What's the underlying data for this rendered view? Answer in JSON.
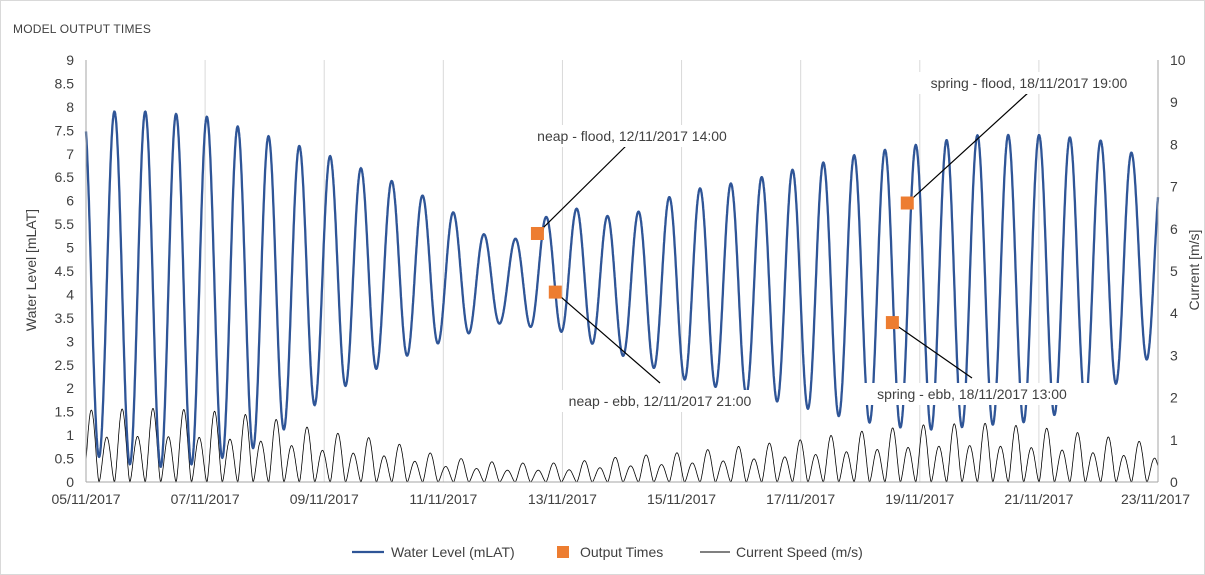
{
  "chart_data": {
    "type": "line",
    "title": "MODEL OUTPUT TIMES",
    "x_axis": {
      "ticks": [
        "05/11/2017",
        "07/11/2017",
        "09/11/2017",
        "11/11/2017",
        "13/11/2017",
        "15/11/2017",
        "17/11/2017",
        "19/11/2017",
        "21/11/2017",
        "23/11/2017"
      ]
    },
    "y_left": {
      "label": "Water Level [mLAT]",
      "range": [
        0,
        9
      ],
      "ticks": [
        "0",
        "0.5",
        "1",
        "1.5",
        "2",
        "2.5",
        "3",
        "3.5",
        "4",
        "4.5",
        "5",
        "5.5",
        "6",
        "6.5",
        "7",
        "7.5",
        "8",
        "8.5",
        "9"
      ]
    },
    "y_right": {
      "label": "Current [m/s]",
      "range": [
        0,
        10
      ],
      "ticks": [
        "0",
        "1",
        "2",
        "3",
        "4",
        "5",
        "6",
        "7",
        "8",
        "9",
        "10"
      ]
    },
    "grid": "vertical",
    "legend": {
      "position": "bottom",
      "items": [
        "Water Level (mLAT)",
        "Output Times",
        "Current Speed (m/s)"
      ]
    },
    "series": [
      {
        "name": "Water Level (mLAT)",
        "axis": "left",
        "color": "#2f5597",
        "x": [
          "05/11/2017",
          "06/11/2017",
          "07/11/2017",
          "08/11/2017",
          "09/11/2017",
          "10/11/2017",
          "11/11/2017",
          "12/11/2017",
          "13/11/2017",
          "14/11/2017",
          "15/11/2017",
          "16/11/2017",
          "17/11/2017",
          "18/11/2017",
          "19/11/2017",
          "20/11/2017",
          "21/11/2017",
          "22/11/2017",
          "23/11/2017"
        ],
        "high_water": [
          7.9,
          7.9,
          7.8,
          7.4,
          7.0,
          6.5,
          5.9,
          5.0,
          5.9,
          5.6,
          6.2,
          6.4,
          6.7,
          7.0,
          7.2,
          7.4,
          7.4,
          7.3,
          6.8
        ],
        "low_water": [
          0.6,
          0.3,
          0.4,
          0.8,
          1.8,
          2.5,
          3.0,
          3.4,
          3.2,
          2.7,
          2.2,
          1.9,
          1.6,
          1.3,
          1.1,
          1.2,
          1.3,
          1.8,
          2.8
        ]
      },
      {
        "name": "Current Speed (m/s)",
        "axis": "right",
        "color": "#000000",
        "x": [
          "05/11/2017",
          "06/11/2017",
          "07/11/2017",
          "08/11/2017",
          "09/11/2017",
          "10/11/2017",
          "11/11/2017",
          "12/11/2017",
          "13/11/2017",
          "14/11/2017",
          "15/11/2017",
          "16/11/2017",
          "17/11/2017",
          "18/11/2017",
          "19/11/2017",
          "20/11/2017",
          "21/11/2017",
          "22/11/2017",
          "23/11/2017"
        ],
        "peak": [
          1.7,
          1.75,
          1.7,
          1.55,
          1.2,
          1.0,
          0.6,
          0.45,
          0.45,
          0.6,
          0.7,
          0.85,
          1.0,
          1.2,
          1.35,
          1.4,
          1.3,
          1.1,
          0.9
        ]
      },
      {
        "name": "Output Times",
        "axis": "left",
        "color": "#ed7d31",
        "points": [
          {
            "label": "neap - flood, 12/11/2017 14:00",
            "y": 5.3
          },
          {
            "label": "neap - ebb, 12/11/2017 21:00",
            "y": 4.05
          },
          {
            "label": "spring - ebb, 18/11/2017 13:00",
            "y": 3.4
          },
          {
            "label": "spring - flood, 18/11/2017 19:00",
            "y": 5.95
          }
        ]
      }
    ]
  }
}
